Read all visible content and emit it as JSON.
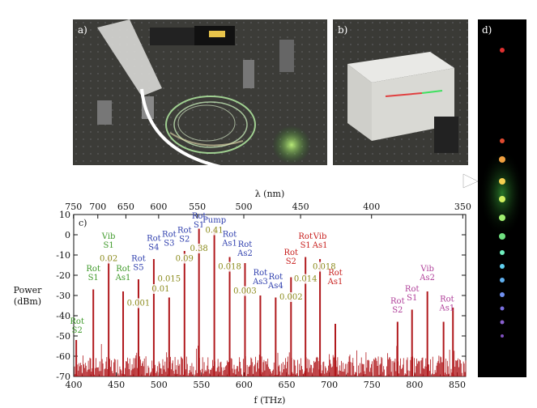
{
  "panels": {
    "a": "a)",
    "b": "b)",
    "c": "c)",
    "d": "d)"
  },
  "colors": {
    "bar": "#b0181c",
    "rot_blue": "#2f3fae",
    "rot_red": "#c8201e",
    "vib_green": "#3f9a2a",
    "value_green": "#8a8a1a",
    "anti_pink": "#b0409a"
  },
  "chart_data": {
    "type": "bar",
    "xlabel": "f (THz)",
    "ylabel": "Power\n(dBm)",
    "top_axis_label": "λ (nm)",
    "xlim": [
      400,
      860
    ],
    "ylim": [
      -70,
      10
    ],
    "x_ticks": [
      400,
      450,
      500,
      550,
      600,
      650,
      700,
      750,
      800,
      850
    ],
    "y_ticks": [
      10,
      0,
      -10,
      -20,
      -30,
      -40,
      -50,
      -60,
      -70
    ],
    "top_ticks": [
      750,
      700,
      650,
      600,
      550,
      500,
      450,
      400,
      350
    ],
    "lines": [
      {
        "f": 403,
        "p": -52
      },
      {
        "f": 423,
        "p": -27
      },
      {
        "f": 441,
        "p": -11
      },
      {
        "f": 458,
        "p": -28
      },
      {
        "f": 476,
        "p": -22
      },
      {
        "f": 494,
        "p": -12
      },
      {
        "f": 512,
        "p": -31
      },
      {
        "f": 530,
        "p": -8
      },
      {
        "f": 547,
        "p": 3
      },
      {
        "f": 565,
        "p": 3
      },
      {
        "f": 583,
        "p": -11
      },
      {
        "f": 601,
        "p": -14
      },
      {
        "f": 619,
        "p": -30
      },
      {
        "f": 637,
        "p": -31
      },
      {
        "f": 655,
        "p": -21
      },
      {
        "f": 672,
        "p": -11
      },
      {
        "f": 689,
        "p": -12
      },
      {
        "f": 707,
        "p": -44
      },
      {
        "f": 780,
        "p": -43
      },
      {
        "f": 797,
        "p": -37
      },
      {
        "f": 815,
        "p": -28
      },
      {
        "f": 834,
        "p": -43
      },
      {
        "f": 845,
        "p": -36
      }
    ],
    "labels": [
      {
        "text": "Rot\nS2",
        "f": 404,
        "p": -44,
        "kind": "vib_green"
      },
      {
        "text": "Rot\nS1",
        "f": 423,
        "p": -18,
        "kind": "vib_green"
      },
      {
        "text": "Vib\nS1",
        "f": 441,
        "p": -2,
        "kind": "vib_green"
      },
      {
        "text": "0.02",
        "f": 441,
        "p": -13,
        "kind": "value_green"
      },
      {
        "text": "Rot\nAs1",
        "f": 458,
        "p": -18,
        "kind": "vib_green"
      },
      {
        "text": "0.001",
        "f": 476,
        "p": -35,
        "kind": "value_green"
      },
      {
        "text": "Rot\nS5",
        "f": 476,
        "p": -13,
        "kind": "rot_blue"
      },
      {
        "text": "Rot\nS4",
        "f": 494,
        "p": -3,
        "kind": "rot_blue"
      },
      {
        "text": "0.01",
        "f": 502,
        "p": -28,
        "kind": "value_green"
      },
      {
        "text": "Rot\nS3",
        "f": 512,
        "p": -1,
        "kind": "rot_blue"
      },
      {
        "text": "0.015",
        "f": 512,
        "p": -23,
        "kind": "value_green"
      },
      {
        "text": "Rot\nS2",
        "f": 530,
        "p": 1,
        "kind": "rot_blue"
      },
      {
        "text": "0.09",
        "f": 530,
        "p": -13,
        "kind": "value_green"
      },
      {
        "text": "Rot\nS1",
        "f": 547,
        "p": 8,
        "kind": "rot_blue"
      },
      {
        "text": "0.38",
        "f": 547,
        "p": -8,
        "kind": "value_green"
      },
      {
        "text": "Pump",
        "f": 565,
        "p": 6,
        "kind": "rot_blue"
      },
      {
        "text": "0.41",
        "f": 565,
        "p": 1,
        "kind": "value_green"
      },
      {
        "text": "Rot\nAs1",
        "f": 583,
        "p": -1,
        "kind": "rot_blue"
      },
      {
        "text": "0.018",
        "f": 583,
        "p": -17,
        "kind": "value_green"
      },
      {
        "text": "Rot\nAs2",
        "f": 601,
        "p": -6,
        "kind": "rot_blue"
      },
      {
        "text": "0.003",
        "f": 601,
        "p": -29,
        "kind": "value_green"
      },
      {
        "text": "Rot\nAs3",
        "f": 619,
        "p": -20,
        "kind": "rot_blue"
      },
      {
        "text": "Rot\nAs4",
        "f": 637,
        "p": -22,
        "kind": "rot_blue"
      },
      {
        "text": "Rot\nS2",
        "f": 655,
        "p": -10,
        "kind": "rot_red"
      },
      {
        "text": "0.002",
        "f": 655,
        "p": -32,
        "kind": "value_green"
      },
      {
        "text": "Rot\nS1",
        "f": 672,
        "p": -2,
        "kind": "rot_red"
      },
      {
        "text": "0.014",
        "f": 672,
        "p": -23,
        "kind": "value_green"
      },
      {
        "text": "Vib\nAs1",
        "f": 689,
        "p": -2,
        "kind": "rot_red"
      },
      {
        "text": "0.018",
        "f": 694,
        "p": -17,
        "kind": "value_green"
      },
      {
        "text": "Rot\nAs1",
        "f": 707,
        "p": -20,
        "kind": "rot_red"
      },
      {
        "text": "Rot\nS2",
        "f": 780,
        "p": -34,
        "kind": "anti_pink"
      },
      {
        "text": "Rot\nS1",
        "f": 797,
        "p": -28,
        "kind": "anti_pink"
      },
      {
        "text": "Vib\nAs2",
        "f": 815,
        "p": -18,
        "kind": "anti_pink"
      },
      {
        "text": "Rot\nAs1",
        "f": 838,
        "p": -33,
        "kind": "anti_pink"
      }
    ]
  }
}
